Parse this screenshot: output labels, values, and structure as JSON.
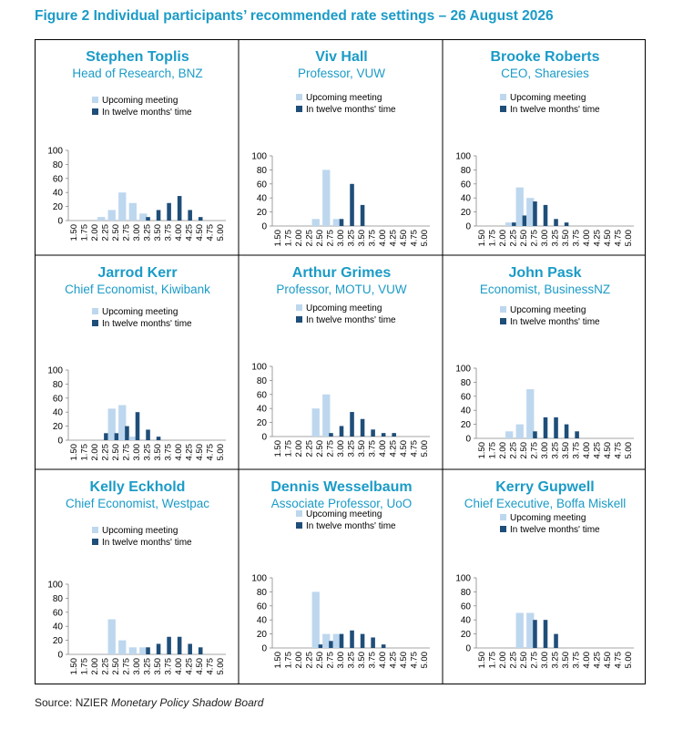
{
  "title": "Figure 2 Individual participants’ recommended rate settings – 26 August 2026",
  "source_prefix": "Source: NZIER ",
  "source_italic": "Monetary Policy Shadow Board",
  "colors": {
    "upcoming": "#bdd7ee",
    "twelve": "#1f4e79",
    "title": "#1b9bc7"
  },
  "legend": {
    "upcoming": "Upcoming meeting",
    "twelve": "In twelve months' time"
  },
  "panels": [
    {
      "name": "Stephen Toplis",
      "role": "Head of Research, BNZ"
    },
    {
      "name": "Viv Hall",
      "role": "Professor, VUW"
    },
    {
      "name": "Brooke Roberts",
      "role": "CEO, Sharesies"
    },
    {
      "name": "Jarrod Kerr",
      "role": "Chief Economist, Kiwibank"
    },
    {
      "name": "Arthur Grimes",
      "role": "Professor, MOTU, VUW"
    },
    {
      "name": "John Pask",
      "role": "Economist, BusinessNZ"
    },
    {
      "name": "Kelly Eckhold",
      "role": "Chief Economist, Westpac"
    },
    {
      "name": "Dennis Wesselbaum",
      "role": "Associate Professor, UoO"
    },
    {
      "name": "Kerry Gupwell",
      "role": "Chief Executive, Boffa Miskell"
    }
  ],
  "chart_data": [
    {
      "type": "bar",
      "categories": [
        "1.50",
        "1.75",
        "2.00",
        "2.25",
        "2.50",
        "2.75",
        "3.00",
        "3.25",
        "3.50",
        "3.75",
        "4.00",
        "4.25",
        "4.50",
        "4.75",
        "5.00"
      ],
      "ylim": [
        0,
        100
      ],
      "yticks": [
        0,
        20,
        40,
        60,
        80,
        100
      ],
      "series": [
        {
          "name": "Upcoming meeting",
          "values": [
            0,
            0,
            0,
            5,
            15,
            40,
            25,
            10,
            0,
            0,
            0,
            0,
            0,
            0,
            0
          ]
        },
        {
          "name": "In twelve months' time",
          "values": [
            0,
            0,
            0,
            0,
            0,
            0,
            0,
            5,
            15,
            25,
            35,
            15,
            5,
            0,
            0
          ]
        }
      ]
    },
    {
      "type": "bar",
      "categories": [
        "1.50",
        "1.75",
        "2.00",
        "2.25",
        "2.50",
        "2.75",
        "3.00",
        "3.25",
        "3.50",
        "3.75",
        "4.00",
        "4.25",
        "4.50",
        "4.75",
        "5.00"
      ],
      "ylim": [
        0,
        100
      ],
      "yticks": [
        0,
        20,
        40,
        60,
        80,
        100
      ],
      "series": [
        {
          "name": "Upcoming meeting",
          "values": [
            0,
            0,
            0,
            0,
            10,
            80,
            10,
            0,
            0,
            0,
            0,
            0,
            0,
            0,
            0
          ]
        },
        {
          "name": "In twelve months' time",
          "values": [
            0,
            0,
            0,
            0,
            0,
            0,
            10,
            60,
            30,
            0,
            0,
            0,
            0,
            0,
            0
          ]
        }
      ]
    },
    {
      "type": "bar",
      "categories": [
        "1.50",
        "1.75",
        "2.00",
        "2.25",
        "2.50",
        "2.75",
        "3.00",
        "3.25",
        "3.50",
        "3.75",
        "4.00",
        "4.25",
        "4.50",
        "4.75",
        "5.00"
      ],
      "ylim": [
        0,
        100
      ],
      "yticks": [
        0,
        20,
        40,
        60,
        80,
        100
      ],
      "series": [
        {
          "name": "Upcoming meeting",
          "values": [
            0,
            0,
            0,
            5,
            55,
            40,
            0,
            0,
            0,
            0,
            0,
            0,
            0,
            0,
            0
          ]
        },
        {
          "name": "In twelve months' time",
          "values": [
            0,
            0,
            0,
            5,
            15,
            35,
            30,
            10,
            5,
            0,
            0,
            0,
            0,
            0,
            0
          ]
        }
      ]
    },
    {
      "type": "bar",
      "categories": [
        "1.50",
        "1.75",
        "2.00",
        "2.25",
        "2.50",
        "2.75",
        "3.00",
        "3.25",
        "3.50",
        "3.75",
        "4.00",
        "4.25",
        "4.50",
        "4.75",
        "5.00"
      ],
      "ylim": [
        0,
        100
      ],
      "yticks": [
        0,
        20,
        40,
        60,
        80,
        100
      ],
      "series": [
        {
          "name": "Upcoming meeting",
          "values": [
            0,
            0,
            0,
            0,
            45,
            50,
            5,
            0,
            0,
            0,
            0,
            0,
            0,
            0,
            0
          ]
        },
        {
          "name": "In twelve months' time",
          "values": [
            0,
            0,
            0,
            10,
            10,
            20,
            40,
            15,
            5,
            0,
            0,
            0,
            0,
            0,
            0
          ]
        }
      ]
    },
    {
      "type": "bar",
      "categories": [
        "1.50",
        "1.75",
        "2.00",
        "2.25",
        "2.50",
        "2.75",
        "3.00",
        "3.25",
        "3.50",
        "3.75",
        "4.00",
        "4.25",
        "4.50",
        "4.75",
        "5.00"
      ],
      "ylim": [
        0,
        100
      ],
      "yticks": [
        0,
        20,
        40,
        60,
        80,
        100
      ],
      "series": [
        {
          "name": "Upcoming meeting",
          "values": [
            0,
            0,
            0,
            0,
            40,
            60,
            0,
            0,
            0,
            0,
            0,
            0,
            0,
            0,
            0
          ]
        },
        {
          "name": "In twelve months' time",
          "values": [
            0,
            0,
            0,
            0,
            0,
            5,
            15,
            35,
            25,
            10,
            5,
            5,
            0,
            0,
            0
          ]
        }
      ]
    },
    {
      "type": "bar",
      "categories": [
        "1.50",
        "1.75",
        "2.00",
        "2.25",
        "2.50",
        "2.75",
        "3.00",
        "3.25",
        "3.50",
        "3.75",
        "4.00",
        "4.25",
        "4.50",
        "4.75",
        "5.00"
      ],
      "ylim": [
        0,
        100
      ],
      "yticks": [
        0,
        20,
        40,
        60,
        80,
        100
      ],
      "series": [
        {
          "name": "Upcoming meeting",
          "values": [
            0,
            0,
            0,
            10,
            20,
            70,
            0,
            0,
            0,
            0,
            0,
            0,
            0,
            0,
            0
          ]
        },
        {
          "name": "In twelve months' time",
          "values": [
            0,
            0,
            0,
            0,
            0,
            10,
            30,
            30,
            20,
            10,
            0,
            0,
            0,
            0,
            0
          ]
        }
      ]
    },
    {
      "type": "bar",
      "categories": [
        "1.50",
        "1.75",
        "2.00",
        "2.25",
        "2.50",
        "2.75",
        "3.00",
        "3.25",
        "3.50",
        "3.75",
        "4.00",
        "4.25",
        "4.50",
        "4.75",
        "5.00"
      ],
      "ylim": [
        0,
        100
      ],
      "yticks": [
        0,
        20,
        40,
        60,
        80,
        100
      ],
      "series": [
        {
          "name": "Upcoming meeting",
          "values": [
            0,
            0,
            0,
            0,
            50,
            20,
            10,
            10,
            0,
            0,
            0,
            0,
            0,
            0,
            0
          ]
        },
        {
          "name": "In twelve months' time",
          "values": [
            0,
            0,
            0,
            0,
            0,
            0,
            0,
            10,
            15,
            25,
            25,
            15,
            10,
            0,
            0
          ]
        }
      ]
    },
    {
      "type": "bar",
      "categories": [
        "1.50",
        "1.75",
        "2.00",
        "2.25",
        "2.50",
        "2.75",
        "3.00",
        "3.25",
        "3.50",
        "3.75",
        "4.00",
        "4.25",
        "4.50",
        "4.75",
        "5.00"
      ],
      "ylim": [
        0,
        100
      ],
      "yticks": [
        0,
        20,
        40,
        60,
        80,
        100
      ],
      "series": [
        {
          "name": "Upcoming meeting",
          "values": [
            0,
            0,
            0,
            0,
            80,
            20,
            20,
            0,
            0,
            0,
            0,
            0,
            0,
            0,
            0
          ]
        },
        {
          "name": "In twelve months' time",
          "values": [
            0,
            0,
            0,
            0,
            5,
            10,
            20,
            25,
            20,
            15,
            5,
            0,
            0,
            0,
            0
          ]
        }
      ]
    },
    {
      "type": "bar",
      "categories": [
        "1.50",
        "1.75",
        "2.00",
        "2.25",
        "2.50",
        "2.75",
        "3.00",
        "3.25",
        "3.50",
        "3.75",
        "4.00",
        "4.25",
        "4.50",
        "4.75",
        "5.00"
      ],
      "ylim": [
        0,
        100
      ],
      "yticks": [
        0,
        20,
        40,
        60,
        80,
        100
      ],
      "series": [
        {
          "name": "Upcoming meeting",
          "values": [
            0,
            0,
            0,
            0,
            50,
            50,
            0,
            0,
            0,
            0,
            0,
            0,
            0,
            0,
            0
          ]
        },
        {
          "name": "In twelve months' time",
          "values": [
            0,
            0,
            0,
            0,
            0,
            40,
            40,
            20,
            0,
            0,
            0,
            0,
            0,
            0,
            0
          ]
        }
      ]
    }
  ]
}
